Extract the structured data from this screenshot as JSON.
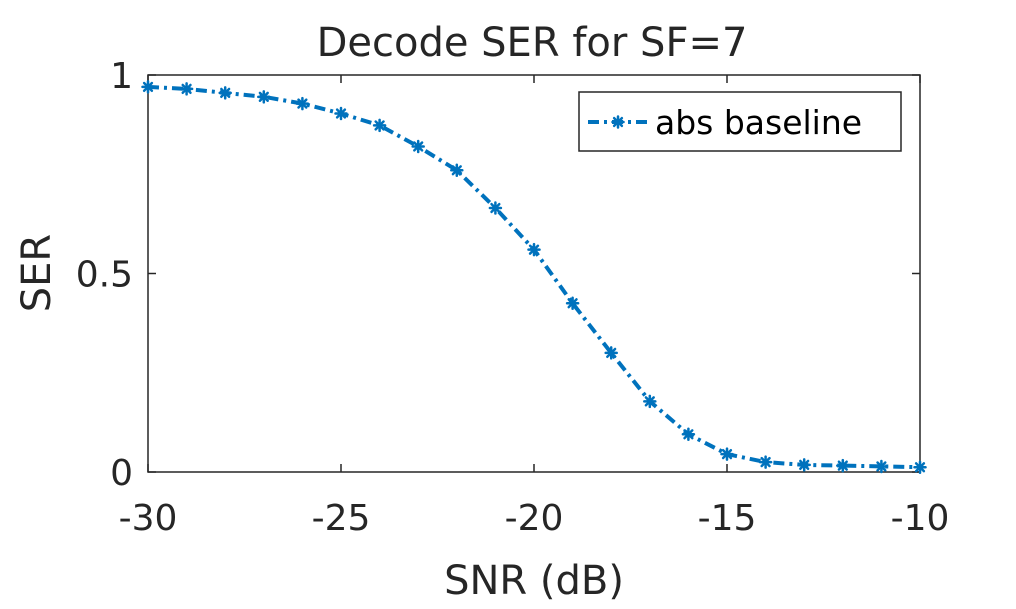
{
  "chart_data": {
    "type": "line",
    "title": "Decode SER for SF=7",
    "xlabel": "SNR (dB)",
    "ylabel": "SER",
    "xlim": [
      -30,
      -10
    ],
    "ylim": [
      0,
      1
    ],
    "x_ticks": [
      -30,
      -25,
      -20,
      -15,
      -10
    ],
    "x_tick_labels": [
      "-30",
      "-25",
      "-20",
      "-15",
      "-10"
    ],
    "y_ticks": [
      0,
      0.5,
      1
    ],
    "y_tick_labels": [
      "0",
      "0.5",
      "1"
    ],
    "grid": false,
    "legend_position": "top-right",
    "series": [
      {
        "name": "abs baseline",
        "color": "#0072BD",
        "line_style": "dash-dot",
        "marker": "asterisk",
        "x": [
          -30,
          -29,
          -28,
          -27,
          -26,
          -25,
          -24,
          -23,
          -22,
          -21,
          -20,
          -19,
          -18,
          -17,
          -16,
          -15,
          -14,
          -13,
          -12,
          -11,
          -10
        ],
        "values": [
          0.97,
          0.965,
          0.955,
          0.945,
          0.928,
          0.903,
          0.873,
          0.82,
          0.76,
          0.665,
          0.56,
          0.425,
          0.3,
          0.178,
          0.095,
          0.045,
          0.025,
          0.018,
          0.016,
          0.014,
          0.012
        ]
      }
    ]
  }
}
